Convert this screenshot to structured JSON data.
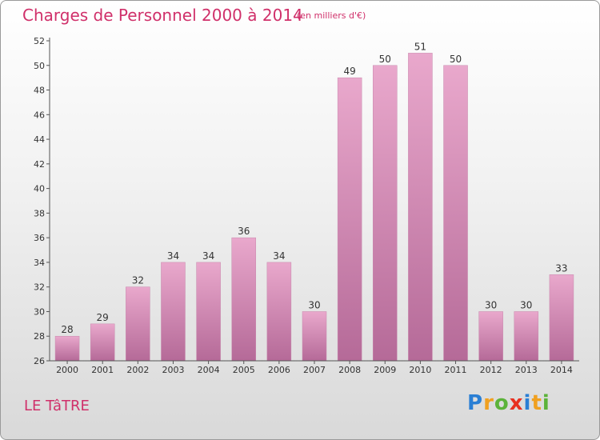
{
  "header": {
    "title": "Charges de Personnel 2000 à 2014",
    "unit": "(en milliers d'€)"
  },
  "footer": {
    "commune": "LE TâTRE",
    "logo": [
      "P",
      "r",
      "o",
      "x",
      "i",
      "t",
      "i"
    ],
    "logo_colors": [
      "#2a7fd4",
      "#f0a020",
      "#5cb33a",
      "#e83020",
      "#2a7fd4",
      "#f0a020",
      "#5cb33a"
    ]
  },
  "colors": {
    "title": "#d0306a",
    "bar_top": "#e9a8cc",
    "bar_bottom": "#b56a98",
    "text": "#333333"
  },
  "chart_data": {
    "type": "bar",
    "categories": [
      "2000",
      "2001",
      "2002",
      "2003",
      "2004",
      "2005",
      "2006",
      "2007",
      "2008",
      "2009",
      "2010",
      "2011",
      "2012",
      "2013",
      "2014"
    ],
    "values": [
      28,
      29,
      32,
      34,
      34,
      36,
      34,
      30,
      49,
      50,
      51,
      50,
      30,
      30,
      33
    ],
    "ylim": [
      26,
      52
    ],
    "yticks": [
      26,
      28,
      30,
      32,
      34,
      36,
      38,
      40,
      42,
      44,
      46,
      48,
      50,
      52
    ],
    "grid": false,
    "data_labels": true
  }
}
